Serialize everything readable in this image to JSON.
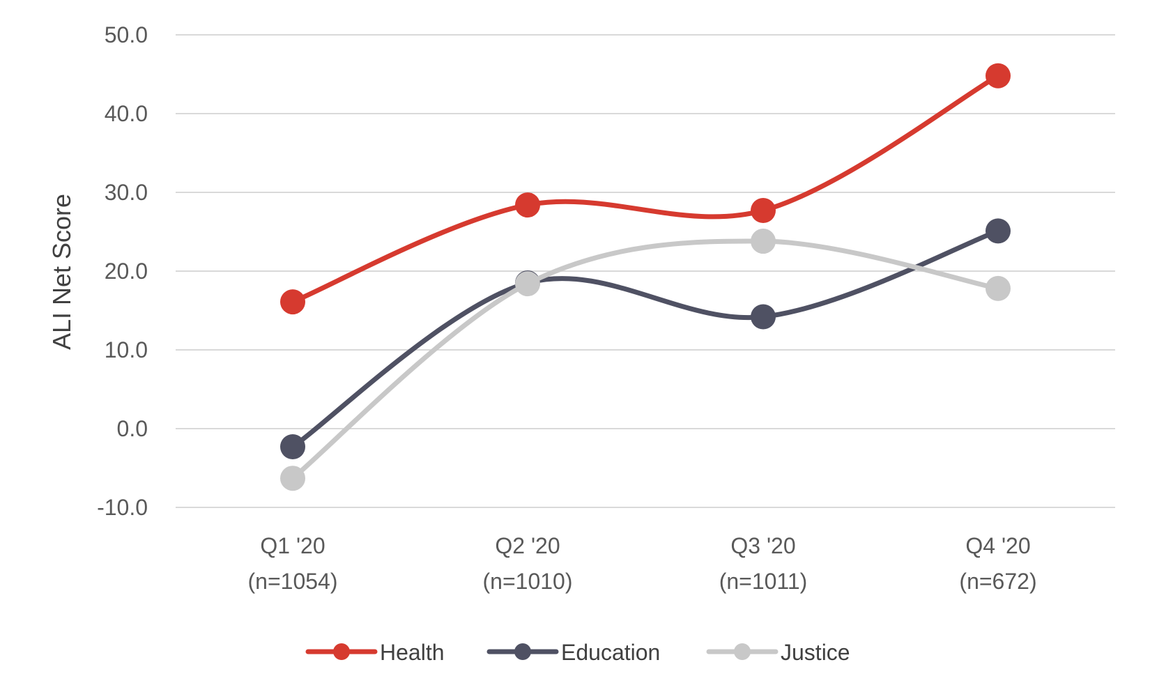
{
  "chart_data": {
    "type": "line",
    "title": "",
    "xlabel": "",
    "ylabel": "ALI Net Score",
    "ylim": [
      -10,
      50
    ],
    "yticks": [
      "50.0",
      "40.0",
      "30.0",
      "20.0",
      "10.0",
      "0.0",
      "-10.0"
    ],
    "ytick_values": [
      50,
      40,
      30,
      20,
      10,
      0,
      -10
    ],
    "categories": [
      [
        "Q1 '20",
        "(n=1054)"
      ],
      [
        "Q2 '20",
        "(n=1010)"
      ],
      [
        "Q3 '20",
        "(n=1011)"
      ],
      [
        "Q4 '20",
        "(n=672)"
      ]
    ],
    "grid": true,
    "legend_position": "bottom",
    "smooth": true,
    "series": [
      {
        "name": "Health",
        "color": "#d63a2f",
        "values": [
          16.1,
          28.4,
          27.7,
          44.8
        ]
      },
      {
        "name": "Education",
        "color": "#4f5163",
        "values": [
          -2.3,
          18.5,
          14.2,
          25.1
        ]
      },
      {
        "name": "Justice",
        "color": "#c8c8c8",
        "values": [
          -6.3,
          18.4,
          23.8,
          17.8
        ]
      }
    ]
  }
}
